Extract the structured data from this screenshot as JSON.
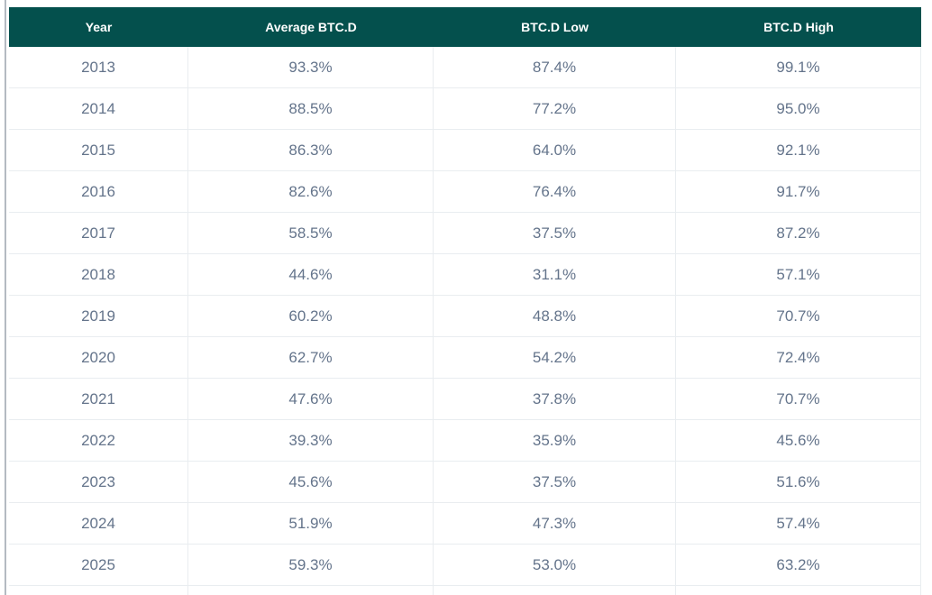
{
  "theme": {
    "page_bg": "#ffffff",
    "header_bg": "#04504d",
    "header_text": "#ffffff",
    "body_text": "#64748b",
    "row_border": "#e9edf0",
    "edge_line": "#b4bac1"
  },
  "chart_data": {
    "type": "table",
    "columns": [
      "Year",
      "Average BTC.D",
      "BTC.D Low",
      "BTC.D High"
    ],
    "rows": [
      [
        "2013",
        "93.3%",
        "87.4%",
        "99.1%"
      ],
      [
        "2014",
        "88.5%",
        "77.2%",
        "95.0%"
      ],
      [
        "2015",
        "86.3%",
        "64.0%",
        "92.1%"
      ],
      [
        "2016",
        "82.6%",
        "76.4%",
        "91.7%"
      ],
      [
        "2017",
        "58.5%",
        "37.5%",
        "87.2%"
      ],
      [
        "2018",
        "44.6%",
        "31.1%",
        "57.1%"
      ],
      [
        "2019",
        "60.2%",
        "48.8%",
        "70.7%"
      ],
      [
        "2020",
        "62.7%",
        "54.2%",
        "72.4%"
      ],
      [
        "2021",
        "47.6%",
        "37.8%",
        "70.7%"
      ],
      [
        "2022",
        "39.3%",
        "35.9%",
        "45.6%"
      ],
      [
        "2023",
        "45.6%",
        "37.5%",
        "51.6%"
      ],
      [
        "2024",
        "51.9%",
        "47.3%",
        "57.4%"
      ],
      [
        "2025",
        "59.3%",
        "53.0%",
        "63.2%"
      ]
    ]
  }
}
